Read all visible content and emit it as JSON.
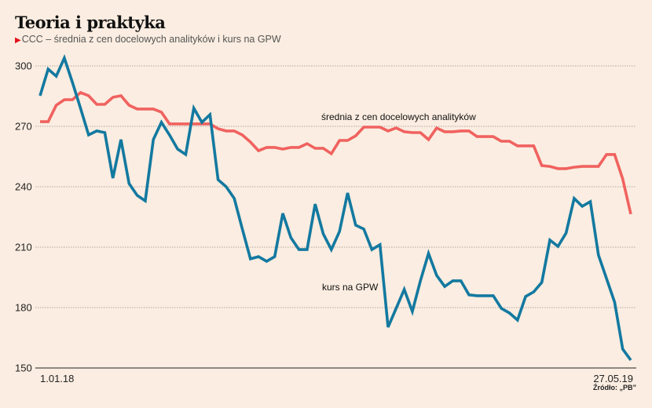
{
  "title": "Teoria i praktyka",
  "subtitle": "CCC – średnia z cen docelowych analityków i kurs na GPW",
  "source": "Źródło: „PB”",
  "colors": {
    "target_price": "#f0625f",
    "stock_price": "#1379a0",
    "marker": "#e3131b"
  },
  "chart_data": {
    "type": "line",
    "title": "Teoria i praktyka",
    "subtitle": "CCC – średnia z cen docelowych analityków i kurs na GPW",
    "xlabel": "",
    "ylabel": "",
    "ylim": [
      150,
      300
    ],
    "yticks": [
      300,
      270,
      240,
      210,
      180,
      150
    ],
    "x_start_label": "1.01.18",
    "x_end_label": "27.05.19",
    "grid": true,
    "series": [
      {
        "name": "średnia z cen docelowych analityków",
        "color": "#f0625f",
        "values": [
          272.3,
          272.3,
          280.5,
          283.2,
          283.2,
          286.8,
          285.2,
          280.9,
          280.9,
          284.4,
          285.2,
          280.5,
          278.6,
          278.6,
          278.6,
          277.0,
          271.2,
          271.2,
          271.2,
          271.2,
          271.2,
          271.2,
          268.8,
          267.7,
          267.7,
          265.7,
          262.2,
          257.9,
          259.5,
          259.5,
          258.7,
          259.5,
          259.5,
          261.4,
          259.1,
          259.1,
          256.4,
          263.0,
          263.0,
          265.3,
          269.6,
          269.6,
          269.6,
          267.7,
          269.2,
          267.3,
          266.9,
          266.9,
          263.4,
          269.2,
          267.3,
          267.3,
          267.7,
          267.7,
          264.9,
          264.9,
          264.9,
          262.6,
          262.6,
          260.3,
          260.3,
          260.3,
          250.5,
          250.1,
          249.0,
          249.0,
          249.7,
          250.1,
          250.1,
          250.1,
          256.0,
          256.0,
          243.9,
          226.4
        ]
      },
      {
        "name": "kurs na GPW",
        "color": "#1379a0",
        "values": [
          285.2,
          298.4,
          294.9,
          303.9,
          291.8,
          279.0,
          265.7,
          267.7,
          266.9,
          244.3,
          263.4,
          241.6,
          235.7,
          233.0,
          263.4,
          272.0,
          265.7,
          258.7,
          256.0,
          279.0,
          272.0,
          275.8,
          243.5,
          240.0,
          234.2,
          219.0,
          204.2,
          205.3,
          203.0,
          205.3,
          226.8,
          214.7,
          208.8,
          208.8,
          231.4,
          216.6,
          208.8,
          217.8,
          236.9,
          220.9,
          219.0,
          208.8,
          211.2,
          170.3,
          179.6,
          189.0,
          178.1,
          193.3,
          206.9,
          196.0,
          190.5,
          193.3,
          193.3,
          186.3,
          185.9,
          185.9,
          185.9,
          179.6,
          177.3,
          173.8,
          185.5,
          187.8,
          192.5,
          213.5,
          210.4,
          217.0,
          234.2,
          230.3,
          232.6,
          206.1,
          194.4,
          182.7,
          159.4,
          153.9
        ]
      }
    ],
    "annotations": [
      "średnia z cen docelowych analityków",
      "kurs na GPW"
    ]
  }
}
